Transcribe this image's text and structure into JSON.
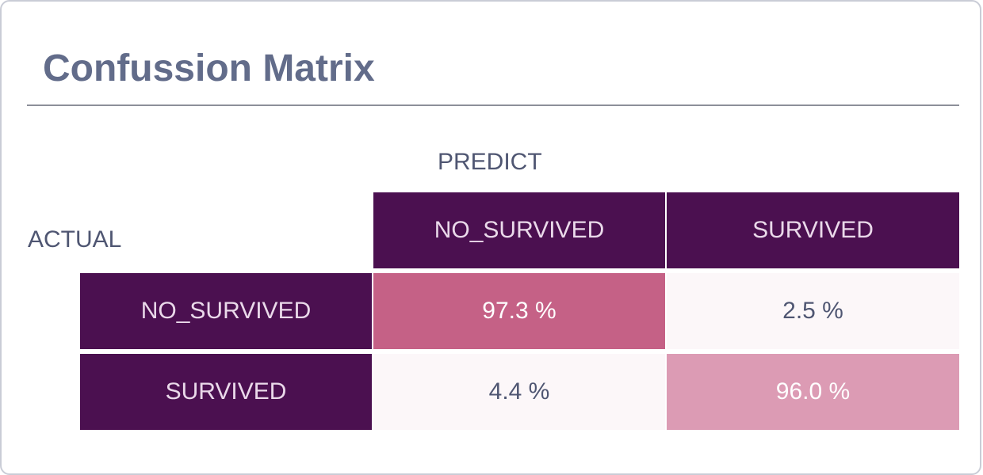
{
  "panel": {
    "title": "Confussion Matrix"
  },
  "chart_data": {
    "type": "heatmap",
    "title": "Confussion Matrix",
    "xlabel": "PREDICT",
    "ylabel": "ACTUAL",
    "columns": [
      "NO_SURVIVED",
      "SURVIVED"
    ],
    "rows": [
      "NO_SURVIVED",
      "SURVIVED"
    ],
    "values": [
      [
        97.3,
        2.5
      ],
      [
        4.4,
        96.0
      ]
    ],
    "value_labels": [
      [
        "97.3 %",
        "2.5 %"
      ],
      [
        "4.4 %",
        "96.0 %"
      ]
    ],
    "unit": "%",
    "colors": {
      "header_bg": "#4b1050",
      "header_text": "#ead9ea",
      "cell_high": "#c56186",
      "cell_mid": "#dc9bb4",
      "cell_low": "#fcf7f9",
      "text_dark": "#4f5672",
      "text_light": "#ffffff"
    }
  }
}
